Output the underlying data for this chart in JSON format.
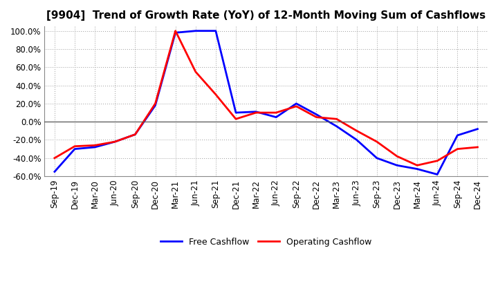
{
  "title": "[9904]  Trend of Growth Rate (YoY) of 12-Month Moving Sum of Cashflows",
  "x_labels": [
    "Sep-19",
    "Dec-19",
    "Mar-20",
    "Jun-20",
    "Sep-20",
    "Dec-20",
    "Mar-21",
    "Jun-21",
    "Sep-21",
    "Dec-21",
    "Mar-22",
    "Jun-22",
    "Sep-22",
    "Dec-22",
    "Mar-23",
    "Jun-23",
    "Sep-23",
    "Dec-23",
    "Mar-24",
    "Jun-24",
    "Sep-24",
    "Dec-24"
  ],
  "operating_cashflow": [
    -40,
    -27,
    -26,
    -22,
    -14,
    20,
    100,
    55,
    30,
    3,
    10,
    10,
    17,
    5,
    3,
    -10,
    -22,
    -38,
    -48,
    -43,
    -30,
    -28
  ],
  "free_cashflow": [
    -55,
    -30,
    -28,
    -22,
    -14,
    18,
    98,
    100,
    100,
    10,
    11,
    5,
    20,
    8,
    -5,
    -20,
    -40,
    -48,
    -52,
    -58,
    -15,
    -8
  ],
  "operating_color": "#ff0000",
  "free_color": "#0000ff",
  "ylim": [
    -60,
    105
  ],
  "yticks": [
    -60,
    -40,
    -20,
    0,
    20,
    40,
    60,
    80,
    100
  ],
  "background_color": "#ffffff",
  "grid_color": "#999999",
  "legend_labels": [
    "Operating Cashflow",
    "Free Cashflow"
  ],
  "title_fontsize": 11,
  "tick_fontsize": 8.5,
  "line_width": 2.0
}
